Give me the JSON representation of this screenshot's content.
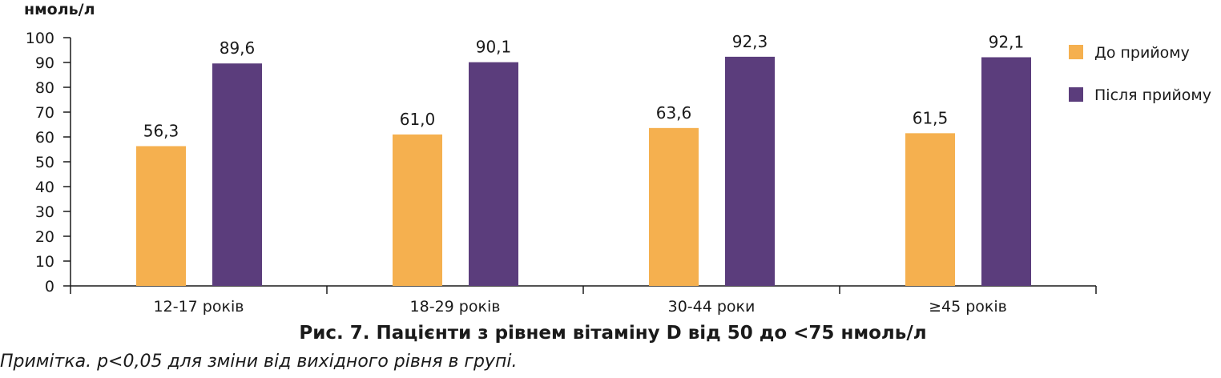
{
  "chart_data": {
    "type": "bar",
    "ylabel": "нмоль/л",
    "ylim": [
      0,
      100
    ],
    "yticks": [
      0,
      10,
      20,
      30,
      40,
      50,
      60,
      70,
      80,
      90,
      100
    ],
    "categories": [
      "12-17 років",
      "18-29 років",
      "30-44 роки",
      "≥45 років"
    ],
    "series": [
      {
        "name": "До прийому",
        "color": "#f5b04f",
        "values": [
          56.3,
          61.0,
          63.6,
          61.5
        ],
        "labels": [
          "56,3",
          "61,0",
          "63,6",
          "61,5"
        ]
      },
      {
        "name": "Після прийому",
        "color": "#5b3d7c",
        "values": [
          89.6,
          90.1,
          92.3,
          92.1
        ],
        "labels": [
          "89,6",
          "90,1",
          "92,3",
          "92,1"
        ]
      }
    ],
    "legend_position": "top-right",
    "grid": false
  },
  "caption": "Рис. 7. Пацієнти з рівнем вітаміну D від 50 до <75 нмоль/л",
  "note": "Примітка. p<0,05 для зміни від вихідного рівня в групі."
}
